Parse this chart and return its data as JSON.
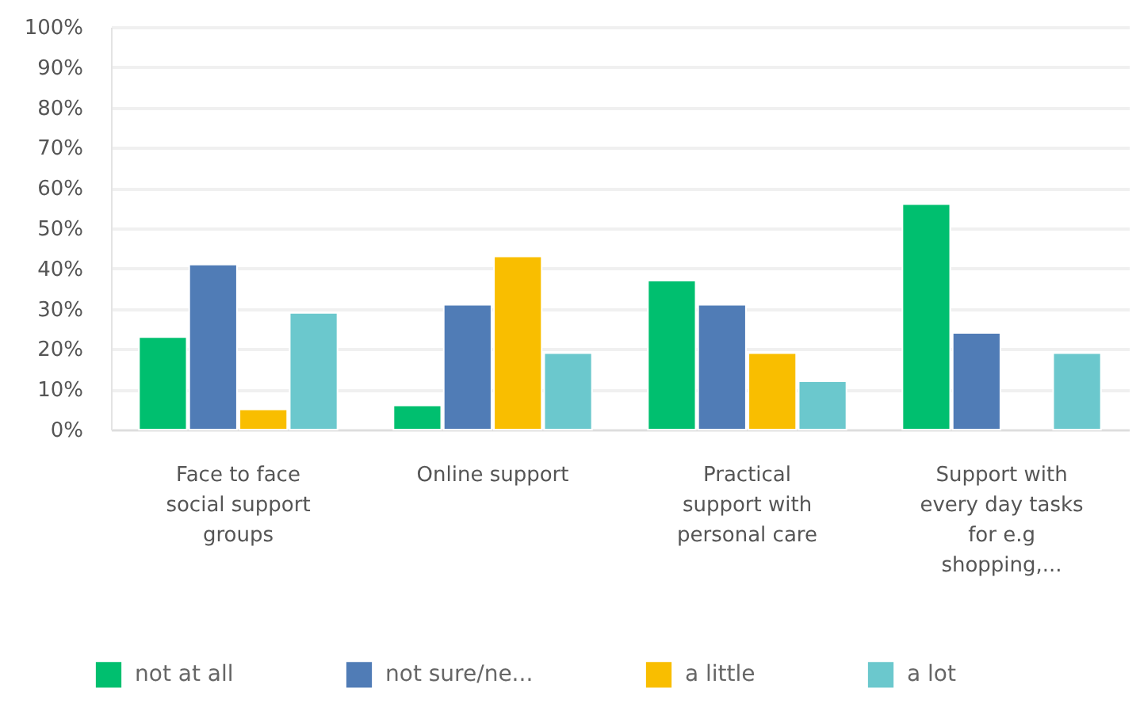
{
  "chart_data": {
    "type": "bar",
    "categories": [
      "Face to face social support groups",
      "Online support",
      "Practical support with personal care",
      "Support with every day tasks for e.g shopping,..."
    ],
    "series": [
      {
        "name": "not at all",
        "color": "#00bf6f",
        "values": [
          23,
          6,
          37,
          56
        ]
      },
      {
        "name": "not sure/ne...",
        "color": "#507cb6",
        "values": [
          41,
          31,
          31,
          24
        ]
      },
      {
        "name": "a little",
        "color": "#f9be00",
        "values": [
          5,
          43,
          19,
          null
        ]
      },
      {
        "name": "a lot",
        "color": "#6bc8cd",
        "values": [
          29,
          19,
          12,
          19
        ]
      }
    ],
    "ylim": [
      0,
      100
    ],
    "yticks": [
      {
        "value": 0,
        "label": "0%"
      },
      {
        "value": 10,
        "label": "10%"
      },
      {
        "value": 20,
        "label": "20%"
      },
      {
        "value": 30,
        "label": "30%"
      },
      {
        "value": 40,
        "label": "40%"
      },
      {
        "value": 50,
        "label": "50%"
      },
      {
        "value": 60,
        "label": "60%"
      },
      {
        "value": 70,
        "label": "70%"
      },
      {
        "value": 80,
        "label": "80%"
      },
      {
        "value": 90,
        "label": "90%"
      },
      {
        "value": 100,
        "label": "100%"
      }
    ],
    "grid": "y",
    "legend": "bottom"
  }
}
